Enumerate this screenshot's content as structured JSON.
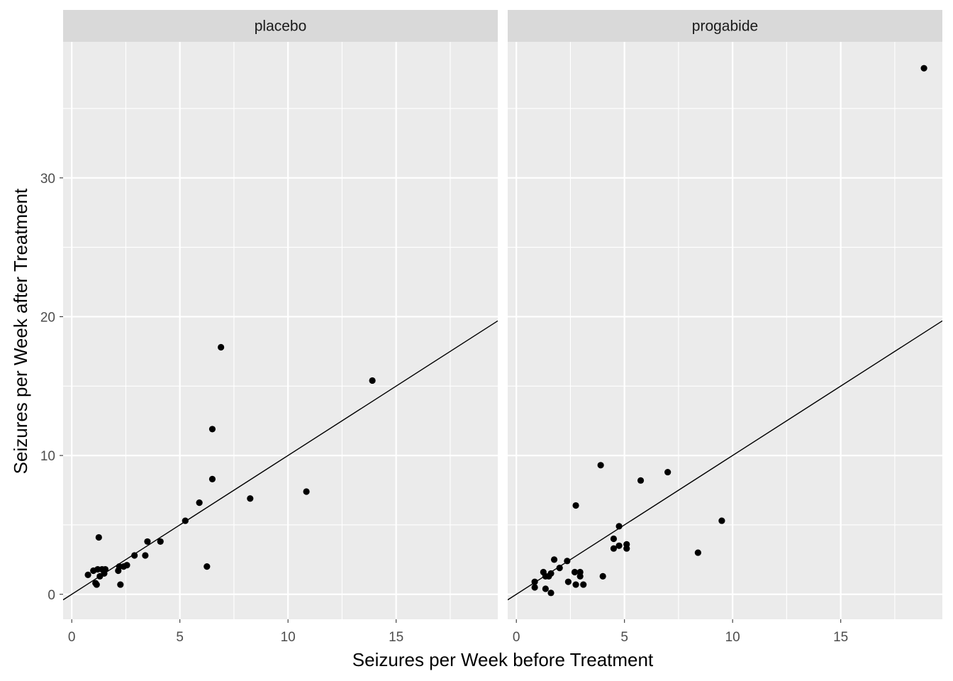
{
  "chart_data": {
    "type": "scatter",
    "xlabel": "Seizures per Week before Treatment",
    "ylabel": "Seizures per Week after Treatment",
    "xlim": [
      -0.4,
      19.7
    ],
    "ylim": [
      -1.8,
      39.8
    ],
    "x_ticks": [
      0,
      5,
      10,
      15
    ],
    "y_ticks": [
      0,
      10,
      20,
      30
    ],
    "reference_line": {
      "intercept": 0,
      "slope": 1
    },
    "colors": {
      "panel_bg": "#ebebeb",
      "strip_bg": "#d9d9d9",
      "grid": "#ffffff",
      "point": "#000000",
      "line": "#000000"
    },
    "panels": [
      {
        "strip": "placebo",
        "points": [
          {
            "x": 0.75,
            "y": 1.4
          },
          {
            "x": 1.0,
            "y": 1.7
          },
          {
            "x": 1.1,
            "y": 0.8
          },
          {
            "x": 1.15,
            "y": 0.7
          },
          {
            "x": 1.2,
            "y": 1.8
          },
          {
            "x": 1.25,
            "y": 4.1
          },
          {
            "x": 1.3,
            "y": 1.3
          },
          {
            "x": 1.4,
            "y": 1.8
          },
          {
            "x": 1.5,
            "y": 1.5
          },
          {
            "x": 1.55,
            "y": 1.8
          },
          {
            "x": 2.15,
            "y": 1.7
          },
          {
            "x": 2.2,
            "y": 2.0
          },
          {
            "x": 2.25,
            "y": 0.7
          },
          {
            "x": 2.4,
            "y": 2.0
          },
          {
            "x": 2.55,
            "y": 2.1
          },
          {
            "x": 2.9,
            "y": 2.8
          },
          {
            "x": 3.4,
            "y": 2.8
          },
          {
            "x": 3.5,
            "y": 3.8
          },
          {
            "x": 4.1,
            "y": 3.8
          },
          {
            "x": 5.25,
            "y": 5.3
          },
          {
            "x": 5.9,
            "y": 6.6
          },
          {
            "x": 6.25,
            "y": 2.0
          },
          {
            "x": 6.5,
            "y": 11.9
          },
          {
            "x": 6.5,
            "y": 8.3
          },
          {
            "x": 6.9,
            "y": 17.8
          },
          {
            "x": 8.25,
            "y": 6.9
          },
          {
            "x": 10.85,
            "y": 7.4
          },
          {
            "x": 13.9,
            "y": 15.4
          }
        ]
      },
      {
        "strip": "progabide",
        "points": [
          {
            "x": 0.85,
            "y": 0.5
          },
          {
            "x": 0.85,
            "y": 0.9
          },
          {
            "x": 1.25,
            "y": 1.6
          },
          {
            "x": 1.35,
            "y": 1.3
          },
          {
            "x": 1.35,
            "y": 0.4
          },
          {
            "x": 1.5,
            "y": 1.3
          },
          {
            "x": 1.6,
            "y": 0.1
          },
          {
            "x": 1.6,
            "y": 1.5
          },
          {
            "x": 1.75,
            "y": 2.5
          },
          {
            "x": 2.0,
            "y": 1.9
          },
          {
            "x": 2.35,
            "y": 2.4
          },
          {
            "x": 2.4,
            "y": 0.9
          },
          {
            "x": 2.7,
            "y": 1.6
          },
          {
            "x": 2.75,
            "y": 0.7
          },
          {
            "x": 2.75,
            "y": 6.4
          },
          {
            "x": 2.95,
            "y": 1.6
          },
          {
            "x": 2.95,
            "y": 1.3
          },
          {
            "x": 3.1,
            "y": 0.7
          },
          {
            "x": 3.9,
            "y": 9.3
          },
          {
            "x": 4.0,
            "y": 1.3
          },
          {
            "x": 4.5,
            "y": 4.0
          },
          {
            "x": 4.5,
            "y": 3.3
          },
          {
            "x": 4.75,
            "y": 4.9
          },
          {
            "x": 4.75,
            "y": 3.5
          },
          {
            "x": 5.1,
            "y": 3.6
          },
          {
            "x": 5.1,
            "y": 3.3
          },
          {
            "x": 5.75,
            "y": 8.2
          },
          {
            "x": 7.0,
            "y": 8.8
          },
          {
            "x": 8.4,
            "y": 3.0
          },
          {
            "x": 9.5,
            "y": 5.3
          },
          {
            "x": 18.85,
            "y": 37.9
          }
        ]
      }
    ]
  }
}
